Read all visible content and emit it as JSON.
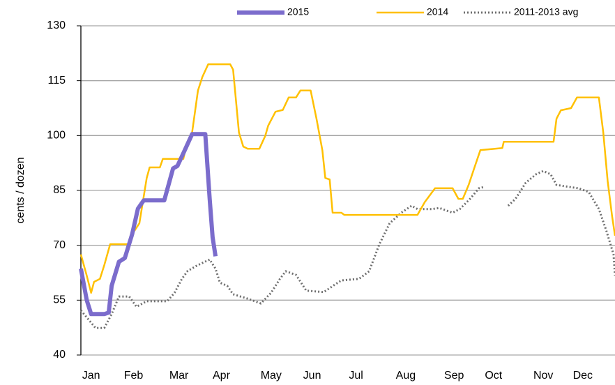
{
  "chart_data": {
    "type": "line",
    "ylabel": "cents / dozen",
    "xlim": [
      0,
      365
    ],
    "xticks": [
      {
        "value": 7,
        "label": "Jan"
      },
      {
        "value": 36,
        "label": "Feb"
      },
      {
        "value": 67,
        "label": "Mar"
      },
      {
        "value": 96,
        "label": "Apr"
      },
      {
        "value": 130,
        "label": "May"
      },
      {
        "value": 158,
        "label": "Jun"
      },
      {
        "value": 188,
        "label": "Jul"
      },
      {
        "value": 222,
        "label": "Aug"
      },
      {
        "value": 255,
        "label": "Sep"
      },
      {
        "value": 282,
        "label": "Oct"
      },
      {
        "value": 316,
        "label": "Nov"
      },
      {
        "value": 343,
        "label": "Dec"
      }
    ],
    "ylim": [
      40,
      130
    ],
    "yticks": [
      40,
      55,
      70,
      85,
      100,
      115,
      130
    ],
    "grid": true,
    "legend": "top",
    "series": [
      {
        "name": "2015",
        "color": "#7b6ccc",
        "style": "solid",
        "width": 6,
        "x": [
          0,
          4,
          7,
          16,
          19,
          21,
          26,
          30,
          35,
          39,
          43,
          57,
          63,
          66,
          71,
          76,
          85,
          88,
          90,
          92
        ],
        "values": [
          63.6,
          55,
          51.2,
          51.2,
          51.6,
          58.9,
          65.5,
          66.5,
          73,
          80,
          82.3,
          82.3,
          91,
          91.7,
          96,
          100.4,
          100.4,
          82.7,
          72.2,
          67
        ]
      },
      {
        "name": "2014",
        "color": "#ffc000",
        "style": "solid",
        "width": 2.5,
        "x": [
          0,
          2,
          4,
          7,
          9,
          13,
          16,
          20,
          33,
          35,
          40,
          45,
          47,
          54,
          56,
          70,
          72,
          76,
          80,
          83,
          87,
          102,
          104,
          108,
          111,
          114,
          122,
          126,
          128,
          133,
          138,
          142,
          147,
          150,
          157,
          161,
          165,
          167,
          170,
          172,
          178,
          180,
          230,
          235,
          242,
          254,
          258,
          261,
          265,
          269,
          273,
          288,
          289,
          323,
          325,
          328,
          335,
          339,
          354,
          357,
          360,
          363,
          365
        ],
        "values": [
          67.5,
          64.6,
          61.7,
          57,
          60,
          60.8,
          64.6,
          70.3,
          70.3,
          73,
          76,
          88.4,
          91.3,
          91.3,
          93.6,
          93.6,
          97,
          100.8,
          112.3,
          116,
          119.5,
          119.5,
          118,
          100.8,
          97,
          96.4,
          96.4,
          99.9,
          102.7,
          106.5,
          107,
          110.4,
          110.4,
          112.3,
          112.3,
          104.6,
          96,
          88.4,
          88,
          78.9,
          78.9,
          78.3,
          78.3,
          81.8,
          85.6,
          85.6,
          82.7,
          82.7,
          86.5,
          91.3,
          96,
          96.6,
          98.3,
          98.3,
          104.6,
          106.9,
          107.5,
          110.4,
          110.4,
          100.8,
          87.5,
          78,
          72.6
        ]
      },
      {
        "name": "2011-2013 avg",
        "color": "#6e6e6e",
        "style": "dotted",
        "width": 3,
        "x": [
          0,
          4,
          10,
          16,
          21,
          26,
          33,
          38,
          45,
          59,
          64,
          69,
          73,
          80,
          88,
          92,
          95,
          100,
          104,
          114,
          123,
          130,
          136,
          140,
          147,
          154,
          166,
          173,
          178,
          190,
          197,
          204,
          211,
          219,
          226,
          230,
          240,
          245,
          254,
          259,
          266,
          272,
          276,
          284,
          292,
          297,
          304,
          311,
          316,
          321,
          325,
          333,
          340,
          347,
          354,
          359,
          364,
          365
        ],
        "values": [
          52.2,
          50.3,
          47.4,
          47.4,
          51.2,
          56,
          56,
          53.2,
          54.7,
          54.7,
          57,
          60.8,
          63,
          64.6,
          66.1,
          63.6,
          59.8,
          58.9,
          56.6,
          55.4,
          54.1,
          57,
          60.8,
          62.9,
          61.9,
          57.6,
          57.2,
          59.1,
          60.4,
          60.8,
          62.9,
          70.3,
          76,
          78.9,
          80.8,
          79.9,
          79.9,
          80.2,
          78.9,
          79.9,
          82.7,
          85.6,
          86,
          null,
          80.8,
          82.7,
          87.1,
          89.4,
          90.3,
          89.4,
          86.5,
          86,
          85.6,
          84.6,
          79.9,
          74.1,
          67.5,
          61.7
        ]
      }
    ]
  }
}
